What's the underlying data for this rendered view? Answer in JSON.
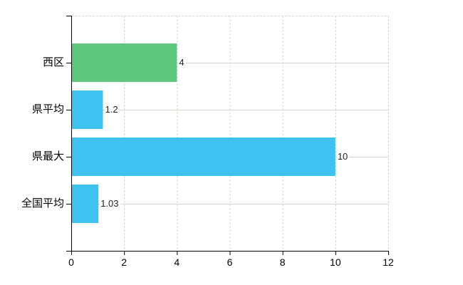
{
  "chart_data": {
    "type": "bar",
    "orientation": "horizontal",
    "title": "",
    "categories": [
      "西区",
      "県平均",
      "県最大",
      "全国平均"
    ],
    "values": [
      4,
      1.2,
      10,
      1.03
    ],
    "value_labels": [
      "4",
      "1.2",
      "10",
      "1.03"
    ],
    "bar_colors": [
      "#5dc87c",
      "#3ec3f1",
      "#3ec3f1",
      "#3ec3f1"
    ],
    "xlabel": "",
    "ylabel": "",
    "xlim": [
      0,
      12
    ],
    "x_ticks": [
      0,
      2,
      4,
      6,
      8,
      10,
      12
    ],
    "grid": "on",
    "legend": "none",
    "colors": {
      "background": "#ffffff",
      "axis": "#000000",
      "vertical_gridline": "#d8d8d8",
      "horizontal_gridline": "#ccd9cc",
      "category_text": "#000000",
      "tick_text": "#000000",
      "value_text": "#222222"
    }
  }
}
